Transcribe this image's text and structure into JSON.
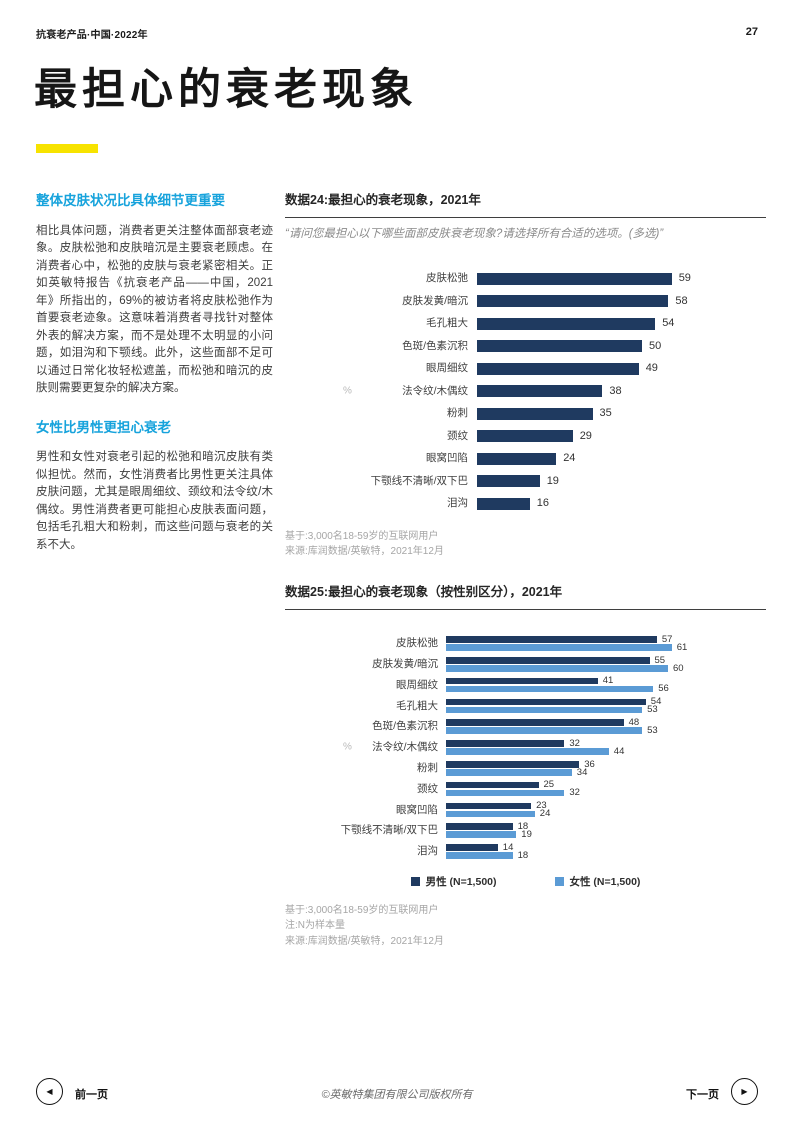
{
  "header": {
    "meta": "抗衰老产品·中国·2022年",
    "page_number": "27"
  },
  "title": "最担心的衰老现象",
  "sidebar": {
    "sections": [
      {
        "heading": "整体皮肤状况比具体细节更重要",
        "body": "相比具体问题，消费者更关注整体面部衰老迹象。皮肤松弛和皮肤暗沉是主要衰老顾虑。在消费者心中，松弛的皮肤与衰老紧密相关。正如英敏特报告《抗衰老产品——中国，2021年》所指出的，69%的被访者将皮肤松弛作为首要衰老迹象。这意味着消费者寻找针对整体外表的解决方案，而不是处理不太明显的小问题，如泪沟和下颚线。此外，这些面部不足可以通过日常化妆轻松遮盖，而松弛和暗沉的皮肤则需要更复杂的解决方案。"
      },
      {
        "heading": "女性比男性更担心衰老",
        "body": "男性和女性对衰老引起的松弛和暗沉皮肤有类似担忧。然而，女性消费者比男性更关注具体皮肤问题，尤其是眼周细纹、颈纹和法令纹/木偶纹。男性消费者更可能担心皮肤表面问题，包括毛孔粗大和粉刺，而这些问题与衰老的关系不大。"
      }
    ]
  },
  "chart_data": [
    {
      "type": "bar",
      "orientation": "horizontal",
      "title": "数据24:最担心的衰老现象，2021年",
      "question": "“请问您最担心以下哪些面部皮肤衰老现象?请选择所有合适的选项。(多选)”",
      "unit": "%",
      "categories": [
        "皮肤松弛",
        "皮肤发黄/暗沉",
        "毛孔粗大",
        "色斑/色素沉积",
        "眼周细纹",
        "法令纹/木偶纹",
        "粉刺",
        "颈纹",
        "眼窝凹陷",
        "下颚线不清晰/双下巴",
        "泪沟"
      ],
      "values": [
        59,
        58,
        54,
        50,
        49,
        38,
        35,
        29,
        24,
        19,
        16
      ],
      "xlim": [
        0,
        66
      ],
      "bar_color": "#1F3A60",
      "footnotes": [
        "基于:3,000名18-59岁的互联网用户",
        "来源:库润数据/英敏特，2021年12月"
      ]
    },
    {
      "type": "bar",
      "orientation": "horizontal",
      "title": "数据25:最担心的衰老现象（按性别区分），2021年",
      "unit": "%",
      "categories": [
        "皮肤松弛",
        "皮肤发黄/暗沉",
        "眼周细纹",
        "毛孔粗大",
        "色斑/色素沉积",
        "法令纹/木偶纹",
        "粉刺",
        "颈纹",
        "眼窝凹陷",
        "下颚线不清晰/双下巴",
        "泪沟"
      ],
      "series": [
        {
          "name": "男性 (N=1,500)",
          "color": "#1F3A60",
          "values": [
            57,
            55,
            41,
            54,
            48,
            32,
            36,
            25,
            23,
            18,
            14
          ]
        },
        {
          "name": "女性 (N=1,500)",
          "color": "#5B9BD5",
          "values": [
            61,
            60,
            56,
            53,
            53,
            44,
            34,
            32,
            24,
            19,
            18
          ]
        }
      ],
      "xlim": [
        0,
        66
      ],
      "legend_position": "bottom",
      "footnotes": [
        "基于:3,000名18-59岁的互联网用户",
        "注:N为样本量",
        "来源:库润数据/英敏特，2021年12月"
      ]
    }
  ],
  "footer": {
    "prev_label": "前一页",
    "next_label": "下一页",
    "copyright": "©英敏特集团有限公司版权所有"
  },
  "colors": {
    "accent_yellow": "#F7E300",
    "heading_blue": "#17A3DC",
    "bar_navy": "#1F3A60",
    "bar_lightblue": "#5B9BD5"
  }
}
